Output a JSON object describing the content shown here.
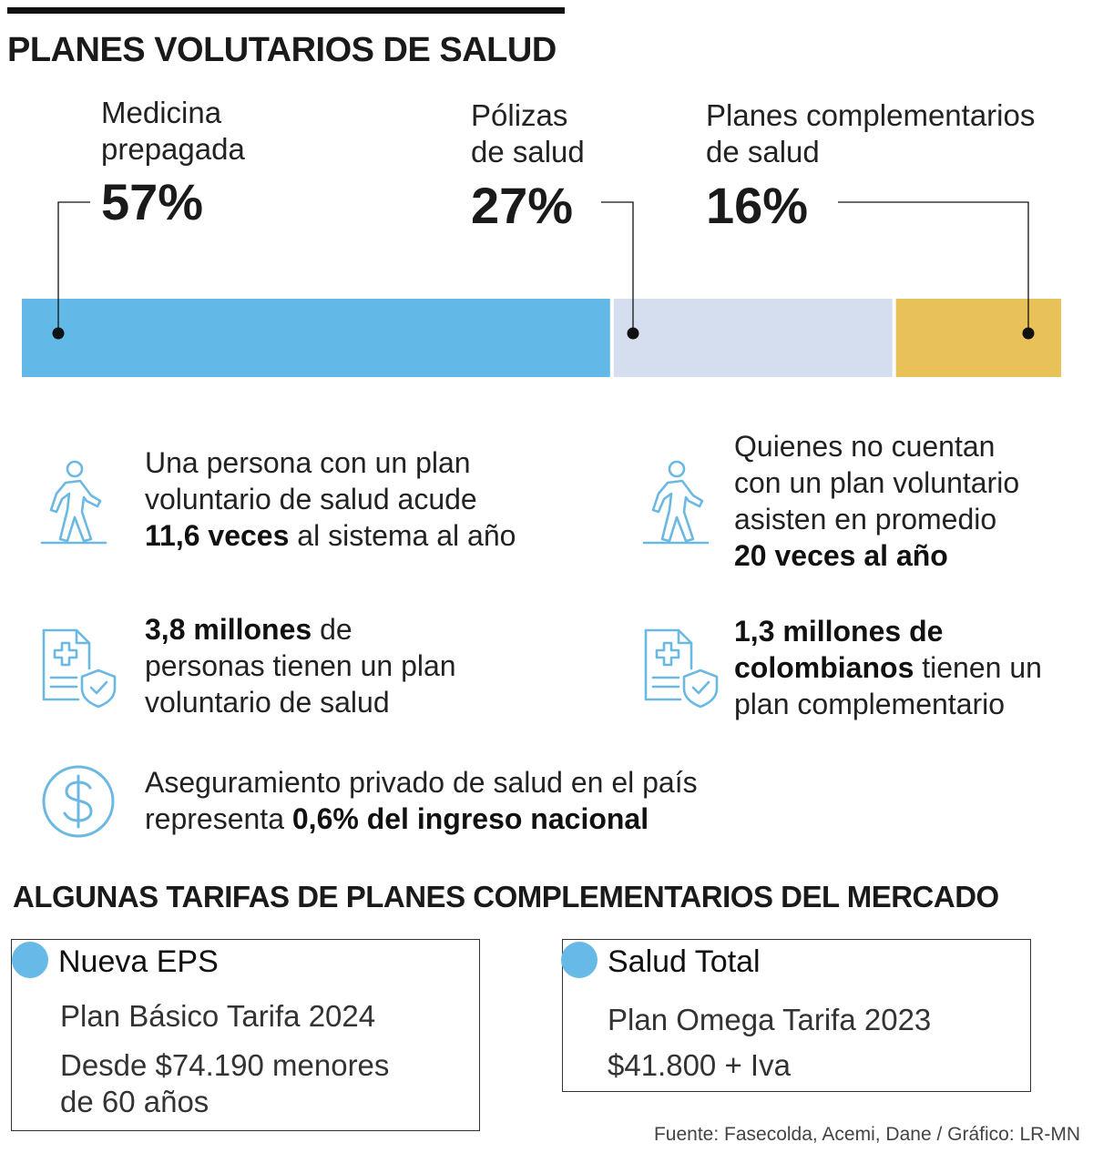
{
  "title": "PLANES VOLUTARIOS DE SALUD",
  "colors": {
    "seg1": "#62b9e8",
    "seg2": "#d5deef",
    "seg3": "#e8c158",
    "icon": "#6bb8e3"
  },
  "chart_data": {
    "type": "bar",
    "stacked": true,
    "orientation": "horizontal",
    "categories": [
      "Medicina prepagada",
      "Pólizas de salud",
      "Planes complementarios de salud"
    ],
    "values": [
      57,
      27,
      16
    ],
    "labels": [
      "57%",
      "27%",
      "16%"
    ],
    "unit": "%",
    "title": "PLANES VOLUTARIOS DE SALUD"
  },
  "segments": [
    {
      "label_lines": [
        "Medicina",
        "prepagada"
      ],
      "pct": "57%"
    },
    {
      "label_lines": [
        "Pólizas",
        "de salud"
      ],
      "pct": "27%"
    },
    {
      "label_lines": [
        "Planes complementarios",
        "de salud"
      ],
      "pct": "16%"
    }
  ],
  "stats": {
    "visits_with_plan": {
      "l1": "Una persona con un plan",
      "l2": "voluntario de salud acude",
      "l3_bold": "11,6 veces",
      "l3_rest": " al sistema al año",
      "icon": "walking-person-icon"
    },
    "visits_without_plan": {
      "l1": "Quienes no cuentan",
      "l2": "con un plan voluntario",
      "l3": "asisten en promedio",
      "l4_bold": "20 veces al año",
      "icon": "walking-person-icon"
    },
    "people_with_plan": {
      "l1_bold": "3,8 millones",
      "l1_rest": " de",
      "l2": "personas tienen un plan",
      "l3": "voluntario de salud",
      "icon": "insurance-document-icon"
    },
    "colombians_complementary": {
      "l1_bold": "1,3 millones de",
      "l2_bold": "colombianos",
      "l2_rest": " tienen un",
      "l3": "plan complementario",
      "icon": "insurance-document-icon"
    },
    "income_share": {
      "l1": "Aseguramiento privado de salud en el país",
      "l2": "representa ",
      "l2_bold": "0,6% del ingreso nacional",
      "icon": "dollar-coin-icon"
    }
  },
  "tariffs": {
    "title": "ALGUNAS TARIFAS DE PLANES COMPLEMENTARIOS DEL MERCADO",
    "cards": [
      {
        "name": "Nueva EPS",
        "plan": "Plan Básico Tarifa 2024",
        "price_lines": [
          "Desde $74.190 menores",
          "de 60 años"
        ]
      },
      {
        "name": "Salud Total",
        "plan": "Plan Omega Tarifa 2023",
        "price_lines": [
          "$41.800 + Iva"
        ]
      }
    ]
  },
  "source": "Fuente: Fasecolda, Acemi, Dane / Gráfico: LR-MN"
}
